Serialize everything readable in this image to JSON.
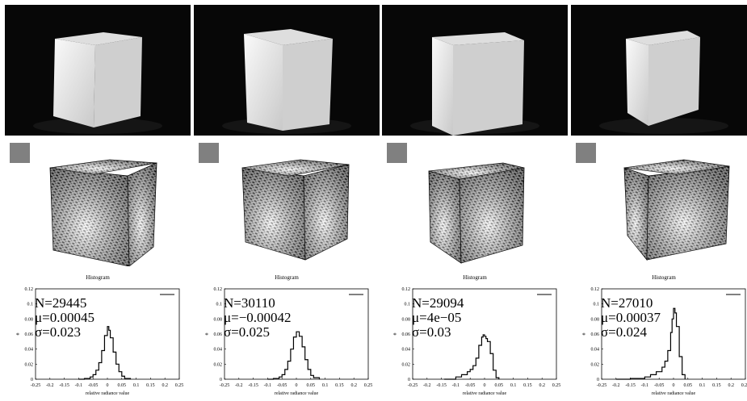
{
  "panels": [
    {
      "stats": {
        "N": "N=29445",
        "mu": "μ=0.00045",
        "sigma": "σ=0.023"
      },
      "histogram_title": "Histogram",
      "chart_data": {
        "type": "line",
        "title": "Histogram",
        "xlabel": "relative radiance value",
        "ylabel": "*",
        "xlim": [
          -0.25,
          0.25
        ],
        "ylim": [
          0,
          0.12
        ],
        "x_ticks": [
          "-0.25",
          "-0.2",
          "-0.15",
          "-0.1",
          "-0.05",
          "0",
          "0.05",
          "0.1",
          "0.15",
          "0.2",
          "0.25"
        ],
        "y_ticks": [
          "0",
          "0.02",
          "0.04",
          "0.06",
          "0.08",
          "0.1",
          "0.12"
        ],
        "x": [
          -0.1,
          -0.08,
          -0.06,
          -0.05,
          -0.04,
          -0.03,
          -0.02,
          -0.01,
          0,
          0.005,
          0.01,
          0.02,
          0.03,
          0.04,
          0.05,
          0.06,
          0.08
        ],
        "y": [
          0,
          0.001,
          0.003,
          0.006,
          0.012,
          0.022,
          0.038,
          0.058,
          0.07,
          0.065,
          0.055,
          0.036,
          0.02,
          0.01,
          0.004,
          0.001,
          0
        ]
      }
    },
    {
      "stats": {
        "N": "N=30110",
        "mu": "μ=−0.00042",
        "sigma": "σ=0.025"
      },
      "histogram_title": "Histogram",
      "chart_data": {
        "type": "line",
        "title": "Histogram",
        "xlabel": "relative radiance value",
        "ylabel": "*",
        "xlim": [
          -0.25,
          0.25
        ],
        "ylim": [
          0,
          0.12
        ],
        "x_ticks": [
          "-0.25",
          "-0.2",
          "-0.15",
          "-0.1",
          "-0.05",
          "0",
          "0.05",
          "0.1",
          "0.15",
          "0.2",
          "0.25"
        ],
        "y_ticks": [
          "0",
          "0.02",
          "0.04",
          "0.06",
          "0.08",
          "0.1",
          "0.12"
        ],
        "x": [
          -0.1,
          -0.08,
          -0.06,
          -0.05,
          -0.04,
          -0.03,
          -0.02,
          -0.01,
          0,
          0.01,
          0.02,
          0.03,
          0.04,
          0.05,
          0.06,
          0.08
        ],
        "y": [
          0,
          0.001,
          0.003,
          0.006,
          0.013,
          0.024,
          0.04,
          0.056,
          0.063,
          0.057,
          0.043,
          0.026,
          0.013,
          0.005,
          0.002,
          0
        ]
      }
    },
    {
      "stats": {
        "N": "N=29094",
        "mu": "μ=4e−05",
        "sigma": "σ=0.03"
      },
      "histogram_title": "Histogram",
      "chart_data": {
        "type": "line",
        "title": "Histogram",
        "xlabel": "relative radiance value",
        "ylabel": "*",
        "xlim": [
          -0.25,
          0.25
        ],
        "ylim": [
          0,
          0.12
        ],
        "x_ticks": [
          "-0.25",
          "-0.2",
          "-0.15",
          "-0.1",
          "-0.05",
          "0",
          "0.05",
          "0.1",
          "0.15",
          "0.2",
          "0.25"
        ],
        "y_ticks": [
          "0",
          "0.02",
          "0.04",
          "0.06",
          "0.08",
          "0.1",
          "0.12"
        ],
        "x": [
          -0.14,
          -0.1,
          -0.08,
          -0.06,
          -0.05,
          -0.04,
          -0.03,
          -0.02,
          -0.01,
          -0.005,
          0,
          0.005,
          0.01,
          0.02,
          0.03,
          0.04,
          0.05
        ],
        "y": [
          0,
          0.003,
          0.006,
          0.01,
          0.013,
          0.018,
          0.028,
          0.045,
          0.056,
          0.059,
          0.057,
          0.054,
          0.05,
          0.034,
          0.012,
          0.002,
          0
        ]
      }
    },
    {
      "stats": {
        "N": "N=27010",
        "mu": "μ=0.00037",
        "sigma": "σ=0.024"
      },
      "histogram_title": "Histogram",
      "chart_data": {
        "type": "line",
        "title": "Histogram",
        "xlabel": "relative radiance value",
        "ylabel": "*",
        "xlim": [
          -0.25,
          0.25
        ],
        "ylim": [
          0,
          0.12
        ],
        "x_ticks": [
          "-0.25",
          "-0.2",
          "-0.15",
          "-0.1",
          "-0.05",
          "0",
          "0.05",
          "0.1",
          "0.15",
          "0.2",
          "0.25"
        ],
        "y_ticks": [
          "0",
          "0.02",
          "0.04",
          "0.06",
          "0.08",
          "0.1",
          "0.12"
        ],
        "x": [
          -0.2,
          -0.15,
          -0.1,
          -0.08,
          -0.06,
          -0.04,
          -0.03,
          -0.02,
          -0.01,
          -0.005,
          0,
          0.005,
          0.01,
          0.02,
          0.03,
          0.04
        ],
        "y": [
          0,
          0.001,
          0.003,
          0.006,
          0.01,
          0.016,
          0.024,
          0.038,
          0.062,
          0.08,
          0.094,
          0.088,
          0.07,
          0.03,
          0.006,
          0
        ]
      }
    }
  ]
}
